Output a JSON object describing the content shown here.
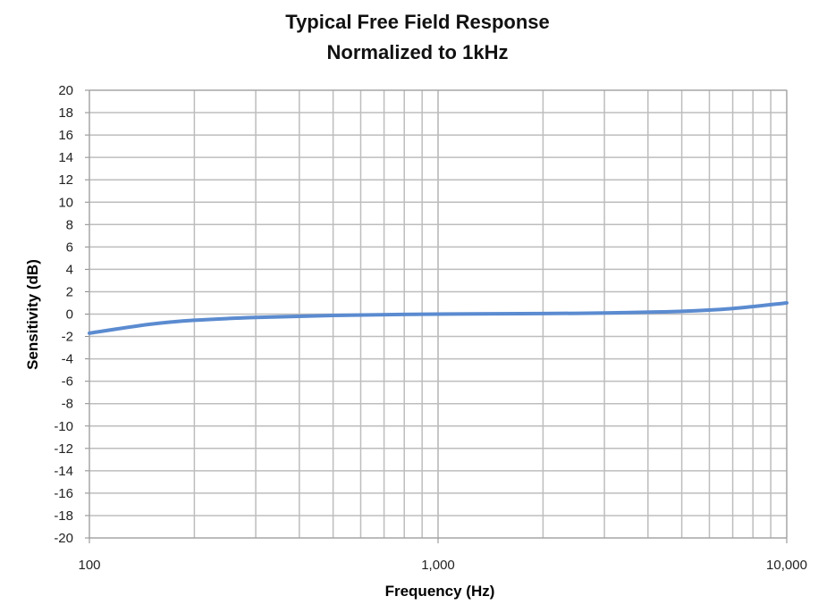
{
  "chart_data": {
    "type": "line",
    "title": "Typical Free Field Response",
    "subtitle": "Normalized to 1kHz",
    "xlabel": "Frequency (Hz)",
    "ylabel": "Sensitivity (dB)",
    "xscale": "log",
    "xlim": [
      100,
      10000
    ],
    "ylim": [
      -20,
      20
    ],
    "x_ticks": [
      100,
      1000,
      10000
    ],
    "x_tick_labels": [
      "100",
      "1,000",
      "10,000"
    ],
    "y_ticks": [
      20,
      18,
      16,
      14,
      12,
      10,
      8,
      6,
      4,
      2,
      0,
      -2,
      -4,
      -6,
      -8,
      -10,
      -12,
      -14,
      -16,
      -18,
      -20
    ],
    "grid": true,
    "series": [
      {
        "name": "Free Field Response",
        "color": "#5B8BD0",
        "x": [
          100,
          150,
          200,
          300,
          500,
          1000,
          2000,
          3000,
          5000,
          7000,
          10000
        ],
        "y": [
          -1.7,
          -0.9,
          -0.55,
          -0.3,
          -0.12,
          0,
          0.05,
          0.1,
          0.25,
          0.5,
          1.0
        ]
      }
    ]
  }
}
